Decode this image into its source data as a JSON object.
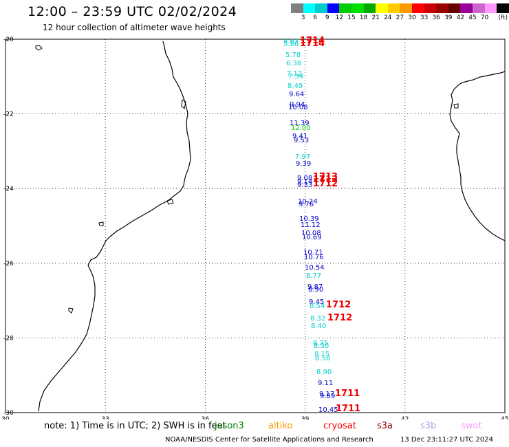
{
  "header": {
    "title": "12:00 – 23:59 UTC 02/02/2024",
    "subtitle": "12 hour collection of altimeter wave heights"
  },
  "colorbar": {
    "unit": "(ft)",
    "colors": [
      "#808080",
      "#00ffff",
      "#00cccc",
      "#0000ff",
      "#00cc00",
      "#00dd00",
      "#00aa00",
      "#ffff00",
      "#ffcc00",
      "#ff9900",
      "#ff0000",
      "#cc0000",
      "#990000",
      "#660000",
      "#990099",
      "#cc66cc",
      "#ff99ff",
      "#000000"
    ],
    "labels": [
      "3",
      "6",
      "9",
      "12",
      "15",
      "18",
      "21",
      "24",
      "27",
      "30",
      "33",
      "36",
      "39",
      "42",
      "45",
      "70"
    ]
  },
  "map": {
    "lat_labels": [
      "-20",
      "-22",
      "-24",
      "-26",
      "-28",
      "-30"
    ],
    "lon_labels": [
      "30",
      "33",
      "36",
      "39",
      "42",
      "45"
    ],
    "lat_range": [
      -30,
      -20
    ],
    "lon_range": [
      30,
      45
    ]
  },
  "observations": [
    {
      "value": "5.63",
      "color": "#00cccc"
    },
    {
      "value": "5.86",
      "color": "#00cccc"
    },
    {
      "value": "5.78",
      "color": "#00cccc"
    },
    {
      "value": "6.38",
      "color": "#00cccc"
    },
    {
      "value": "7.12",
      "color": "#00cccc"
    },
    {
      "value": "7.34",
      "color": "#00cccc"
    },
    {
      "value": "8.49",
      "color": "#00cccc"
    },
    {
      "value": "9.64",
      "color": "#0000cc"
    },
    {
      "value": "9.94",
      "color": "#0000cc"
    },
    {
      "value": "10.08",
      "color": "#0000cc"
    },
    {
      "value": "11.39",
      "color": "#0000cc"
    },
    {
      "value": "12.00",
      "color": "#00cc00"
    },
    {
      "value": "9.41",
      "color": "#0000cc"
    },
    {
      "value": "9.53",
      "color": "#0000cc"
    },
    {
      "value": "7.97",
      "color": "#00cccc"
    },
    {
      "value": "9.39",
      "color": "#0000cc"
    },
    {
      "value": "9.08",
      "color": "#0000cc"
    },
    {
      "value": "9.14",
      "color": "#0000cc"
    },
    {
      "value": "9.33",
      "color": "#0000cc"
    },
    {
      "value": "10.24",
      "color": "#0000cc"
    },
    {
      "value": "9.76",
      "color": "#0000cc"
    },
    {
      "value": "10.39",
      "color": "#0000cc"
    },
    {
      "value": "11.12",
      "color": "#0000cc"
    },
    {
      "value": "10.08",
      "color": "#0000cc"
    },
    {
      "value": "10.69",
      "color": "#0000cc"
    },
    {
      "value": "10.71",
      "color": "#0000cc"
    },
    {
      "value": "10.76",
      "color": "#0000cc"
    },
    {
      "value": "10.54",
      "color": "#0000cc"
    },
    {
      "value": "8.77",
      "color": "#00cccc"
    },
    {
      "value": "9.87",
      "color": "#0000cc"
    },
    {
      "value": "8.90",
      "color": "#0000cc"
    },
    {
      "value": "9.45",
      "color": "#0000cc"
    },
    {
      "value": "8.54",
      "color": "#00cccc"
    },
    {
      "value": "8.32",
      "color": "#00cccc"
    },
    {
      "value": "8.40",
      "color": "#00cccc"
    },
    {
      "value": "8.25",
      "color": "#00cccc"
    },
    {
      "value": "8.30",
      "color": "#00cccc"
    },
    {
      "value": "8.15",
      "color": "#00cccc"
    },
    {
      "value": "8.58",
      "color": "#00cccc"
    },
    {
      "value": "8.90",
      "color": "#00cccc"
    },
    {
      "value": "9.11",
      "color": "#0000cc"
    },
    {
      "value": "9.17",
      "color": "#0000cc"
    },
    {
      "value": "9.89",
      "color": "#0000cc"
    },
    {
      "value": "10.45",
      "color": "#0000cc"
    }
  ],
  "pass_times": [
    "1714",
    "1714",
    "1713",
    "1713",
    "1712",
    "1712",
    "1712",
    "1711",
    "1711"
  ],
  "note": {
    "prefix": "note: 1) Time is in UTC; 2) SWH is in feet",
    "satellites": [
      {
        "name": "jason3",
        "color": "#008000"
      },
      {
        "name": "altiko",
        "color": "#ff9900"
      },
      {
        "name": "cryosat",
        "color": "#ff0000"
      },
      {
        "name": "s3a",
        "color": "#990000"
      },
      {
        "name": "s3b",
        "color": "#b0a0e0"
      },
      {
        "name": "swot",
        "color": "#ff99ff"
      }
    ]
  },
  "footer": {
    "credit": "NOAA/NESDIS Center for Satellite Applications and Research",
    "timestamp": "13 Dec 23:11:27 UTC 2024"
  }
}
